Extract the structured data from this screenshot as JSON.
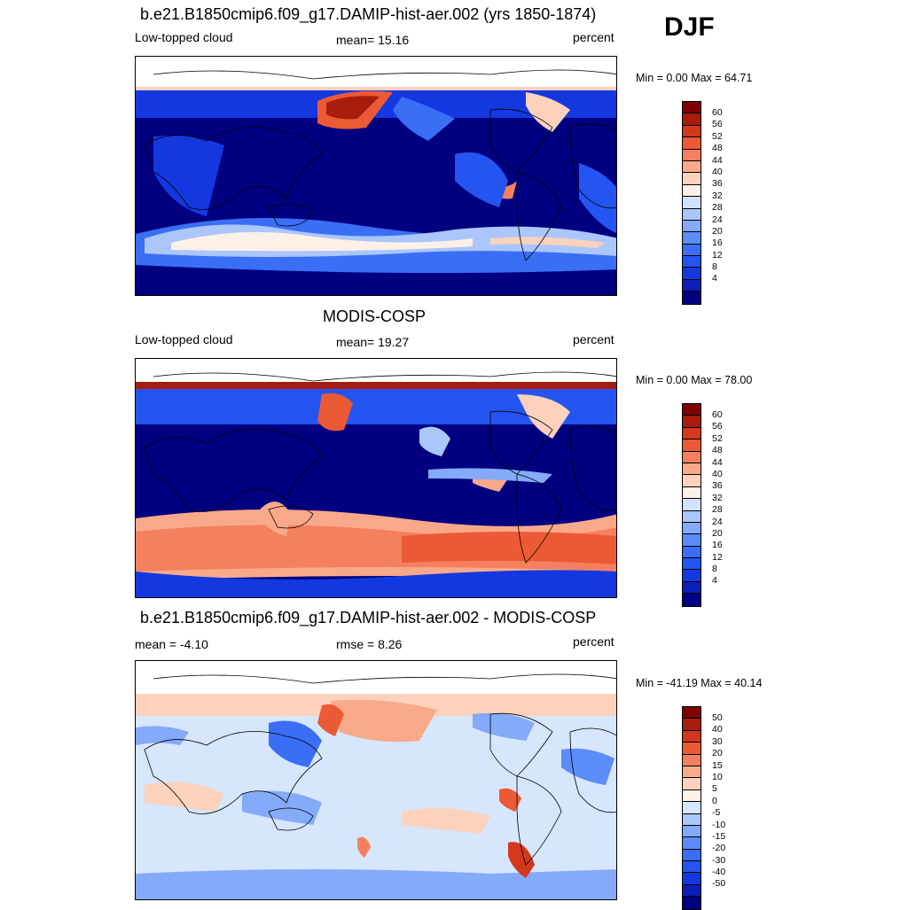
{
  "season": "DJF",
  "panels": [
    {
      "title": "b.e21.B1850cmip6.f09_g17.DAMIP-hist-aer.002 (yrs 1850-1874)",
      "left_label": "Low-topped cloud",
      "center_label": "mean=  15.16",
      "right_label": "percent",
      "minmax": "Min =   0.00 Max =  64.71",
      "scale": "abs",
      "colorbar_labels": [
        "60",
        "56",
        "52",
        "48",
        "44",
        "40",
        "36",
        "32",
        "28",
        "24",
        "20",
        "16",
        "12",
        "8",
        "4"
      ]
    },
    {
      "title": "MODIS-COSP",
      "left_label": "Low-topped cloud",
      "center_label": "mean=  19.27",
      "right_label": "percent",
      "minmax": "Min =   0.00 Max =  78.00",
      "scale": "abs",
      "colorbar_labels": [
        "60",
        "56",
        "52",
        "48",
        "44",
        "40",
        "36",
        "32",
        "28",
        "24",
        "20",
        "16",
        "12",
        "8",
        "4"
      ]
    },
    {
      "title": "b.e21.B1850cmip6.f09_g17.DAMIP-hist-aer.002 - MODIS-COSP",
      "left_label": "mean =  -4.10",
      "center_label": "rmse =   8.26",
      "right_label": "percent",
      "minmax": "Min = -41.19 Max =  40.14",
      "scale": "diff",
      "colorbar_labels": [
        "50",
        "40",
        "30",
        "20",
        "15",
        "10",
        "5",
        "0",
        "-5",
        "-10",
        "-15",
        "-20",
        "-30",
        "-40",
        "-50"
      ]
    }
  ],
  "colors": {
    "abs_scale": [
      "#000080",
      "#0a1fb8",
      "#1438e0",
      "#2455f0",
      "#3a6ef5",
      "#5b8cf8",
      "#84aafa",
      "#aac6fb",
      "#d2e2fd",
      "#fdf0e6",
      "#fcd2bd",
      "#f9a98a",
      "#f4805f",
      "#ec5a35",
      "#d4381a",
      "#a81c0c",
      "#7f0000"
    ],
    "diff_scale": [
      "#000080",
      "#0a1fb8",
      "#1438e0",
      "#2455f0",
      "#3a6ef5",
      "#5b8cf8",
      "#84aafa",
      "#aac6fb",
      "#d6e6fd",
      "#fdf3e9",
      "#fcd2bd",
      "#f9a98a",
      "#f4805f",
      "#ec5a35",
      "#d4381a",
      "#a81c0c",
      "#7f0000"
    ]
  }
}
